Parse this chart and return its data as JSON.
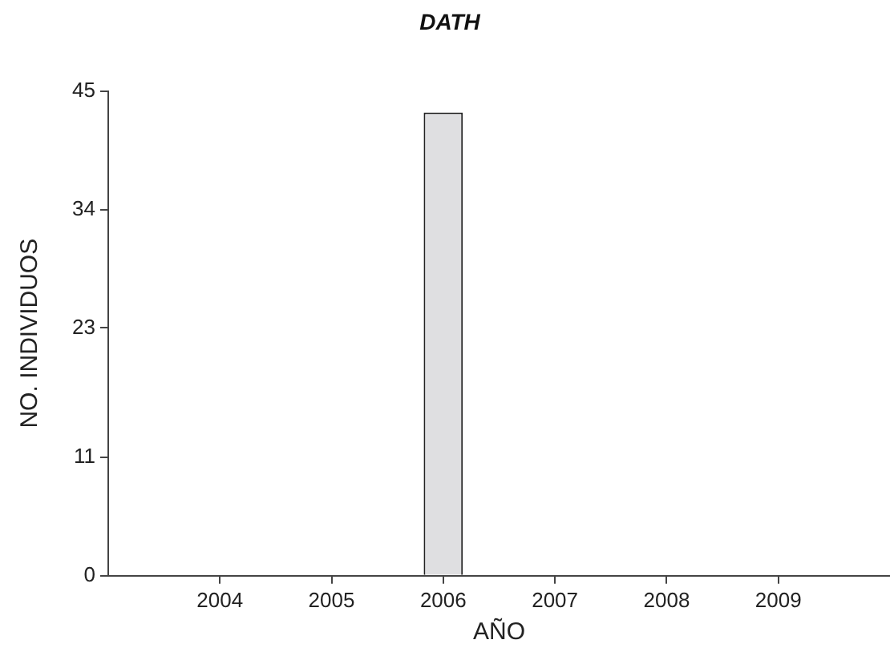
{
  "chart_data": {
    "type": "bar",
    "title": "DATH",
    "xlabel": "AÑO",
    "ylabel": "NO. INDIVIDUOS",
    "x": [
      2004,
      2005,
      2006,
      2007,
      2008,
      2009
    ],
    "values": [
      0,
      0,
      43,
      0,
      0,
      0
    ],
    "color": "#dfdfe1",
    "xlim": [
      2003,
      2010
    ],
    "xticks": [
      2004,
      2005,
      2006,
      2007,
      2008,
      2009
    ],
    "ylim": [
      0,
      45
    ],
    "yticks": [
      0,
      11,
      23,
      34,
      45
    ]
  }
}
